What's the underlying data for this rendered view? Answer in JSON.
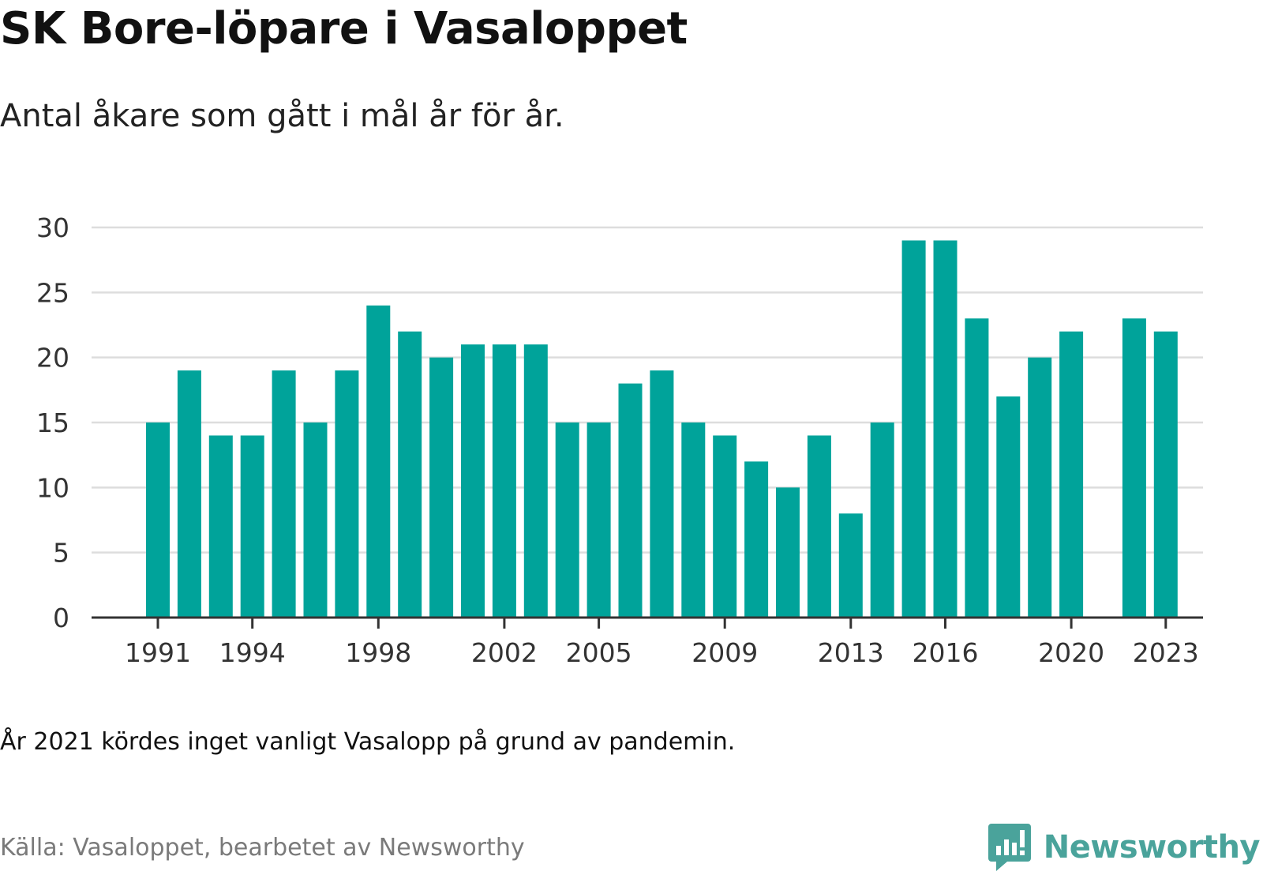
{
  "title": "SK Bore-löpare i Vasaloppet",
  "subtitle": "Antal åkare som gått i mål år för år.",
  "note": "År 2021 kördes inget vanligt Vasalopp på grund av pandemin.",
  "source": "Källa: Vasaloppet, bearbetet av Newsworthy",
  "brand": {
    "name": "Newsworthy",
    "icon": "newsworthy-logo-icon",
    "color": "#4aa39b"
  },
  "colors": {
    "bar": "#00a39a",
    "grid": "#dddddd",
    "axis": "#333333"
  },
  "chart_data": {
    "type": "bar",
    "title": "SK Bore-löpare i Vasaloppet",
    "subtitle": "Antal åkare som gått i mål år för år.",
    "xlabel": "",
    "ylabel": "",
    "categories": [
      "1991",
      "1992",
      "1993",
      "1994",
      "1995",
      "1996",
      "1997",
      "1998",
      "1999",
      "2000",
      "2001",
      "2002",
      "2003",
      "2004",
      "2005",
      "2006",
      "2007",
      "2008",
      "2009",
      "2010",
      "2011",
      "2012",
      "2013",
      "2014",
      "2015",
      "2016",
      "2017",
      "2018",
      "2019",
      "2020",
      "2021",
      "2022",
      "2023"
    ],
    "values": [
      15,
      19,
      14,
      14,
      19,
      15,
      19,
      24,
      22,
      20,
      21,
      21,
      21,
      15,
      15,
      18,
      19,
      15,
      14,
      12,
      10,
      14,
      8,
      15,
      29,
      29,
      23,
      17,
      20,
      22,
      null,
      23,
      22
    ],
    "x_tick_labels": [
      "1991",
      "1994",
      "1998",
      "2002",
      "2005",
      "2009",
      "2013",
      "2016",
      "2020",
      "2023"
    ],
    "y_ticks": [
      0,
      5,
      10,
      15,
      20,
      25,
      30
    ],
    "ylim": [
      0,
      30
    ],
    "grid": true,
    "legend": "none"
  }
}
